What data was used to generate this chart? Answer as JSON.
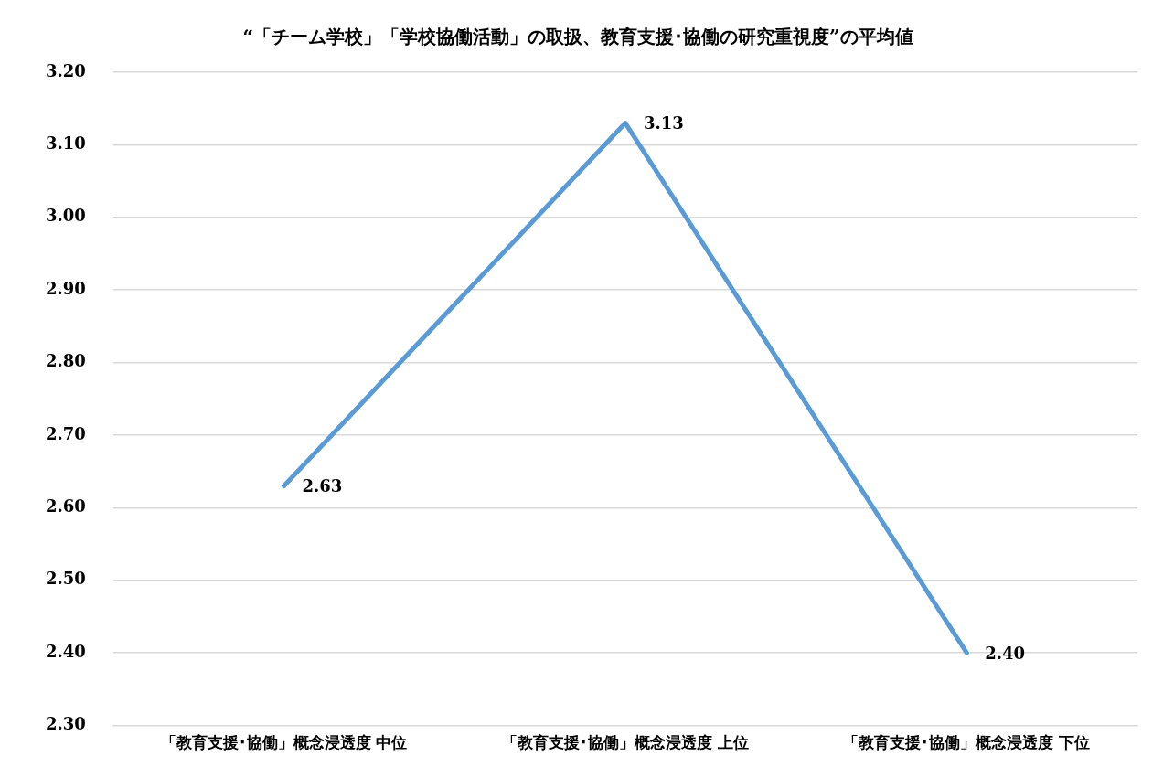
{
  "chart_data": {
    "type": "line",
    "title": "“「チーム学校」「学校協働活動」の取扱、教育支援･協働の研究重視度”の平均値",
    "categories": [
      "「教育支援･協働」概念浸透度 中位",
      "「教育支援･協働」概念浸透度 上位",
      "「教育支援･協働」概念浸透度 下位"
    ],
    "series": [
      {
        "color": "#5b9bd5",
        "values": [
          2.63,
          3.13,
          2.4
        ]
      }
    ],
    "ylim": [
      2.3,
      3.2
    ],
    "yticks": [
      {
        "value": 2.3,
        "label": "2.30"
      },
      {
        "value": 2.4,
        "label": "2.40"
      },
      {
        "value": 2.5,
        "label": "2.50"
      },
      {
        "value": 2.6,
        "label": "2.60"
      },
      {
        "value": 2.7,
        "label": "2.70"
      },
      {
        "value": 2.8,
        "label": "2.80"
      },
      {
        "value": 2.9,
        "label": "2.90"
      },
      {
        "value": 3.0,
        "label": "3.00"
      },
      {
        "value": 3.1,
        "label": "3.10"
      },
      {
        "value": 3.2,
        "label": "3.20"
      }
    ],
    "value_labels": [
      "2.63",
      "3.13",
      "2.40"
    ],
    "grid": "y",
    "legend": false,
    "marker": "none",
    "line_style": "solid"
  }
}
